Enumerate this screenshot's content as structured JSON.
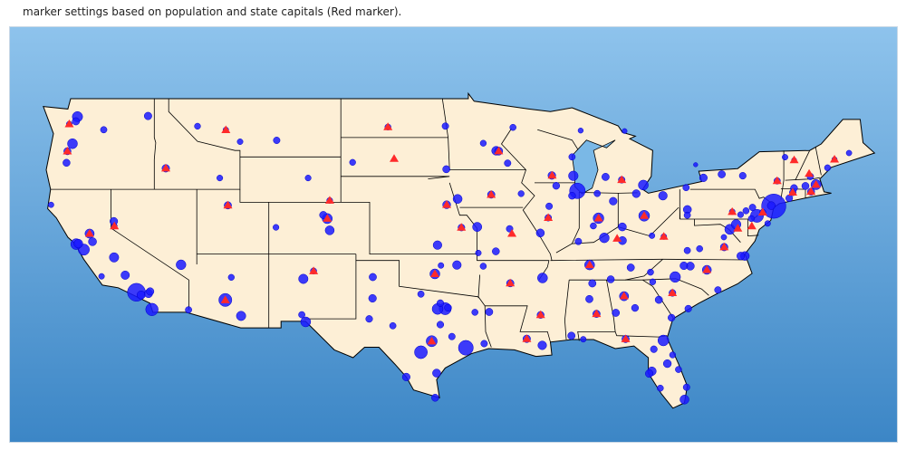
{
  "title": "marker settings based on population and state capitals (Red marker).",
  "colors": {
    "land": "#fdefd6",
    "border": "#000000",
    "city_marker": "#1a1aff",
    "capital_marker": "#ff2a2a",
    "lake": "#7ab8e6",
    "background_top": "#8ec3ec",
    "background_bottom": "#3c86c6"
  },
  "legend": {
    "capital_marker_icon": "triangle-icon",
    "city_marker_icon": "circle-icon"
  },
  "capitals": [
    [
      -86.3,
      32.38
    ],
    [
      -112.07,
      33.45
    ],
    [
      -92.29,
      34.75
    ],
    [
      -121.49,
      38.58
    ],
    [
      -104.99,
      39.74
    ],
    [
      -72.68,
      41.76
    ],
    [
      -75.52,
      39.16
    ],
    [
      -84.28,
      30.44
    ],
    [
      -84.39,
      33.75
    ],
    [
      -116.2,
      43.62
    ],
    [
      -89.65,
      39.8
    ],
    [
      -86.16,
      39.77
    ],
    [
      -93.61,
      41.59
    ],
    [
      -95.68,
      39.05
    ],
    [
      -84.87,
      38.2
    ],
    [
      -91.14,
      30.45
    ],
    [
      -69.78,
      44.31
    ],
    [
      -76.49,
      38.98
    ],
    [
      -71.06,
      42.36
    ],
    [
      -84.55,
      42.73
    ],
    [
      -93.09,
      44.95
    ],
    [
      -90.18,
      32.3
    ],
    [
      -92.17,
      38.58
    ],
    [
      -112.03,
      46.59
    ],
    [
      -96.7,
      40.81
    ],
    [
      -119.77,
      39.16
    ],
    [
      -71.54,
      43.21
    ],
    [
      -74.76,
      40.22
    ],
    [
      -105.94,
      35.69
    ],
    [
      -73.76,
      42.65
    ],
    [
      -78.64,
      35.78
    ],
    [
      -100.78,
      46.81
    ],
    [
      -82.99,
      39.96
    ],
    [
      -97.52,
      35.47
    ],
    [
      -123.03,
      44.94
    ],
    [
      -76.88,
      40.27
    ],
    [
      -71.41,
      41.82
    ],
    [
      -81.03,
      34.0
    ],
    [
      -100.35,
      44.37
    ],
    [
      -86.78,
      36.16
    ],
    [
      -97.74,
      30.27
    ],
    [
      -111.89,
      40.76
    ],
    [
      -72.58,
      44.26
    ],
    [
      -77.44,
      37.54
    ],
    [
      -122.9,
      47.04
    ],
    [
      -81.63,
      38.35
    ],
    [
      -89.38,
      43.07
    ],
    [
      -104.82,
      41.14
    ]
  ],
  "cities": [
    [
      -74.0,
      40.7,
      8.4
    ],
    [
      -118.24,
      34.05,
      3.9
    ],
    [
      -87.63,
      41.88,
      2.7
    ],
    [
      -95.37,
      29.76,
      2.3
    ],
    [
      -112.07,
      33.45,
      1.6
    ],
    [
      -75.16,
      39.95,
      1.6
    ],
    [
      -98.49,
      29.42,
      1.5
    ],
    [
      -117.16,
      32.72,
      1.4
    ],
    [
      -96.8,
      32.78,
      1.3
    ],
    [
      -121.89,
      37.34,
      1.0
    ],
    [
      -97.74,
      30.27,
      0.95
    ],
    [
      -81.66,
      30.33,
      0.9
    ],
    [
      -97.33,
      32.76,
      0.9
    ],
    [
      -82.99,
      39.96,
      0.9
    ],
    [
      -122.42,
      37.77,
      0.88
    ],
    [
      -80.84,
      35.23,
      0.87
    ],
    [
      -86.16,
      39.77,
      0.87
    ],
    [
      -122.33,
      47.61,
      0.75
    ],
    [
      -104.99,
      39.74,
      0.72
    ],
    [
      -77.04,
      38.91,
      0.7
    ],
    [
      -71.06,
      42.36,
      0.69
    ],
    [
      -106.49,
      31.76,
      0.68
    ],
    [
      -86.78,
      36.16,
      0.67
    ],
    [
      -83.05,
      42.33,
      0.67
    ],
    [
      -97.52,
      35.47,
      0.65
    ],
    [
      -122.68,
      45.52,
      0.65
    ],
    [
      -115.14,
      36.17,
      0.64
    ],
    [
      -90.05,
      35.15,
      0.65
    ],
    [
      -85.76,
      38.25,
      0.62
    ],
    [
      -76.61,
      39.29,
      0.6
    ],
    [
      -87.91,
      43.04,
      0.59
    ],
    [
      -106.65,
      35.08,
      0.56
    ],
    [
      -110.97,
      32.22,
      0.54
    ],
    [
      -119.79,
      36.74,
      0.53
    ],
    [
      -121.49,
      38.58,
      0.5
    ],
    [
      -94.58,
      39.1,
      0.49
    ],
    [
      -84.39,
      33.75,
      0.49
    ],
    [
      -80.19,
      25.76,
      0.46
    ],
    [
      -95.94,
      41.26,
      0.47
    ],
    [
      -78.64,
      35.78,
      0.47
    ],
    [
      -105.27,
      40.01,
      0.2
    ],
    [
      -122.27,
      37.8,
      0.42
    ],
    [
      -93.27,
      44.98,
      0.42
    ],
    [
      -95.99,
      36.15,
      0.4
    ],
    [
      -81.69,
      41.5,
      0.39
    ],
    [
      -97.34,
      37.69,
      0.39
    ],
    [
      -90.07,
      29.95,
      0.39
    ],
    [
      -82.46,
      27.95,
      0.39
    ],
    [
      -117.91,
      33.84,
      0.35
    ],
    [
      -76.0,
      36.85,
      0.45
    ],
    [
      -104.82,
      38.83,
      0.47
    ],
    [
      -81.38,
      28.54,
      0.28
    ],
    [
      -84.51,
      39.1,
      0.3
    ],
    [
      -90.2,
      38.63,
      0.3
    ],
    [
      -79.99,
      40.44,
      0.3
    ],
    [
      -93.09,
      44.95,
      0.3
    ],
    [
      -86.8,
      33.52,
      0.21
    ],
    [
      -92.29,
      34.75,
      0.2
    ],
    [
      -111.89,
      40.76,
      0.2
    ],
    [
      -77.44,
      37.54,
      0.23
    ],
    [
      -83.92,
      35.96,
      0.19
    ],
    [
      -78.88,
      42.89,
      0.26
    ],
    [
      -77.61,
      43.16,
      0.21
    ],
    [
      -76.15,
      43.05,
      0.14
    ],
    [
      -73.76,
      42.65,
      0.1
    ],
    [
      -72.68,
      41.76,
      0.12
    ],
    [
      -71.41,
      41.82,
      0.18
    ],
    [
      -72.92,
      41.31,
      0.13
    ],
    [
      -74.17,
      40.74,
      0.28
    ],
    [
      -75.55,
      39.74,
      0.07
    ],
    [
      -80.0,
      40.0,
      0.1
    ],
    [
      -81.03,
      34.0,
      0.13
    ],
    [
      -79.93,
      32.78,
      0.14
    ],
    [
      -81.09,
      32.08,
      0.15
    ],
    [
      -84.28,
      30.44,
      0.19
    ],
    [
      -87.22,
      30.42,
      0.05
    ],
    [
      -88.04,
      30.69,
      0.19
    ],
    [
      -91.14,
      30.45,
      0.22
    ],
    [
      -93.75,
      32.53,
      0.19
    ],
    [
      -90.18,
      32.3,
      0.16
    ],
    [
      -89.4,
      43.07,
      0.26
    ],
    [
      -88.0,
      44.5,
      0.1
    ],
    [
      -85.67,
      42.96,
      0.2
    ],
    [
      -84.55,
      42.73,
      0.11
    ],
    [
      -83.54,
      41.66,
      0.27
    ],
    [
      -86.25,
      41.68,
      0.1
    ],
    [
      -85.14,
      41.08,
      0.26
    ],
    [
      -89.59,
      40.69,
      0.11
    ],
    [
      -89.65,
      39.8,
      0.11
    ],
    [
      -91.53,
      41.66,
      0.07
    ],
    [
      -93.61,
      41.59,
      0.21
    ],
    [
      -96.7,
      40.81,
      0.28
    ],
    [
      -95.68,
      39.05,
      0.13
    ],
    [
      -96.79,
      46.88,
      0.12
    ],
    [
      -100.78,
      46.81,
      0.07
    ],
    [
      -96.73,
      43.55,
      0.18
    ],
    [
      -103.23,
      44.08,
      0.07
    ],
    [
      -108.5,
      45.78,
      0.11
    ],
    [
      -111.04,
      45.68,
      0.05
    ],
    [
      -112.03,
      46.59,
      0.03
    ],
    [
      -114.0,
      46.87,
      0.07
    ],
    [
      -117.43,
      47.66,
      0.22
    ],
    [
      -116.2,
      43.62,
      0.23
    ],
    [
      -112.45,
      42.87,
      0.06
    ],
    [
      -119.81,
      39.53,
      0.25
    ],
    [
      -119.77,
      39.16,
      0.05
    ],
    [
      -123.03,
      44.94,
      0.17
    ],
    [
      -123.09,
      44.05,
      0.17
    ],
    [
      -122.44,
      47.25,
      0.21
    ],
    [
      -122.9,
      47.04,
      0.05
    ],
    [
      -120.51,
      46.6,
      0.1
    ],
    [
      -124.16,
      40.8,
      0.03
    ],
    [
      -121.29,
      37.96,
      0.31
    ],
    [
      -117.4,
      33.95,
      0.33
    ],
    [
      -117.29,
      34.11,
      0.22
    ],
    [
      -119.02,
      35.37,
      0.38
    ],
    [
      -120.66,
      35.28,
      0.05
    ],
    [
      -114.62,
      32.69,
      0.1
    ],
    [
      -111.65,
      35.2,
      0.07
    ],
    [
      -105.94,
      35.69,
      0.08
    ],
    [
      -106.76,
      32.31,
      0.1
    ],
    [
      -101.85,
      33.58,
      0.26
    ],
    [
      -101.83,
      35.22,
      0.2
    ],
    [
      -102.08,
      31.99,
      0.14
    ],
    [
      -97.4,
      27.8,
      0.32
    ],
    [
      -97.5,
      25.9,
      0.18
    ],
    [
      -94.1,
      30.08,
      0.12
    ],
    [
      -94.74,
      32.5,
      0.08
    ],
    [
      -97.14,
      31.55,
      0.14
    ],
    [
      -98.49,
      33.91,
      0.1
    ],
    [
      -100.44,
      31.46,
      0.1
    ],
    [
      -99.51,
      27.5,
      0.26
    ],
    [
      -104.82,
      41.14,
      0.06
    ],
    [
      -106.32,
      42.87,
      0.06
    ],
    [
      -108.55,
      39.06,
      0.06
    ],
    [
      -94.5,
      37.08,
      0.05
    ],
    [
      -93.29,
      37.21,
      0.17
    ],
    [
      -92.33,
      38.95,
      0.12
    ],
    [
      -94.16,
      36.06,
      0.09
    ],
    [
      -97.1,
      36.12,
      0.05
    ],
    [
      -89.1,
      42.27,
      0.15
    ],
    [
      -88.0,
      41.5,
      0.15
    ],
    [
      -87.56,
      37.97,
      0.12
    ],
    [
      -86.52,
      39.17,
      0.08
    ],
    [
      -84.5,
      38.04,
      0.32
    ],
    [
      -82.45,
      38.42,
      0.05
    ],
    [
      -81.63,
      38.35,
      0.05
    ],
    [
      -80.0,
      37.27,
      0.1
    ],
    [
      -79.14,
      37.41,
      0.08
    ],
    [
      -77.87,
      34.23,
      0.12
    ],
    [
      -79.79,
      36.07,
      0.3
    ],
    [
      -80.24,
      36.1,
      0.24
    ],
    [
      -82.55,
      35.6,
      0.09
    ],
    [
      -82.4,
      34.85,
      0.07
    ],
    [
      -83.63,
      32.84,
      0.15
    ],
    [
      -81.97,
      33.47,
      0.2
    ],
    [
      -85.31,
      35.05,
      0.18
    ],
    [
      -86.59,
      34.73,
      0.19
    ],
    [
      -86.3,
      32.38,
      0.2
    ],
    [
      -84.96,
      32.46,
      0.2
    ],
    [
      -82.32,
      29.65,
      0.13
    ],
    [
      -80.05,
      26.71,
      0.11
    ],
    [
      -81.87,
      26.64,
      0.08
    ],
    [
      -82.64,
      27.77,
      0.26
    ],
    [
      -80.61,
      28.08,
      0.08
    ],
    [
      -81.02,
      29.21,
      0.07
    ],
    [
      -73.21,
      44.48,
      0.04
    ],
    [
      -72.58,
      44.26,
      0.01
    ],
    [
      -71.46,
      42.99,
      0.11
    ],
    [
      -70.26,
      43.66,
      0.07
    ],
    [
      -68.77,
      44.8,
      0.03
    ],
    [
      -69.78,
      44.31,
      0.02
    ],
    [
      -71.8,
      42.26,
      0.18
    ],
    [
      -72.59,
      42.1,
      0.15
    ],
    [
      -75.47,
      40.6,
      0.12
    ],
    [
      -76.88,
      40.27,
      0.05
    ],
    [
      -76.3,
      40.04,
      0.06
    ],
    [
      -75.92,
      40.34,
      0.09
    ],
    [
      -80.08,
      42.13,
      0.1
    ],
    [
      -74.76,
      40.22,
      0.08
    ],
    [
      -74.42,
      39.36,
      0.04
    ],
    [
      -76.29,
      36.85,
      0.24
    ],
    [
      -77.46,
      38.3,
      0.03
    ],
    [
      -79.42,
      43.9,
      0.0
    ],
    [
      -92.1,
      46.78,
      0.09
    ],
    [
      -92.47,
      44.02,
      0.11
    ],
    [
      -94.16,
      45.56,
      0.07
    ],
    [
      -87.4,
      46.54,
      0.02
    ],
    [
      -84.35,
      46.5,
      0.01
    ],
    [
      -96.61,
      32.85,
      0.15
    ],
    [
      -97.14,
      33.21,
      0.14
    ],
    [
      -96.34,
      30.63,
      0.12
    ]
  ]
}
